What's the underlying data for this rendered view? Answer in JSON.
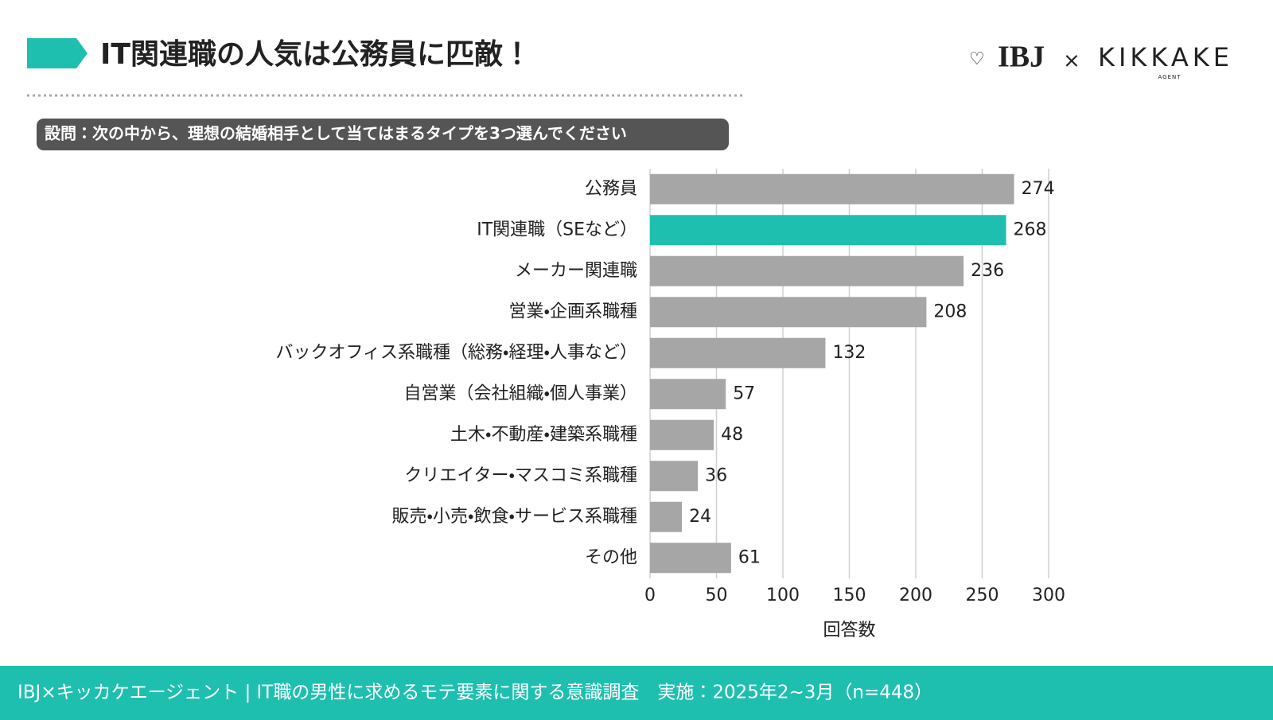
{
  "header": {
    "title": "IT関連職の人気は公務員に匹敵！",
    "logo_left": "IBJ",
    "logo_times": "×",
    "logo_right": "KIKKAKE",
    "logo_sub": "AGENT"
  },
  "question": "設問：次の中から、理想の結婚相手として当てはまるタイプを3つ選んでください",
  "footer": "IBJ×キッカケエージェント | IT職の男性に求めるモテ要素に関する意識調査　実施：2025年2~3月（n=448）",
  "chart_data": {
    "type": "barh",
    "categories": [
      "公務員",
      "IT関連職（SEなど）",
      "メーカー関連職",
      "営業・企画系職種",
      "バックオフィス系職種（総務・経理・人事など）",
      "自営業（会社組織・個人事業）",
      "土木・不動産・建築系職種",
      "クリエイター・マスコミ系職種",
      "販売・小売・飲食・サービス系職種",
      "その他"
    ],
    "values": [
      274,
      268,
      236,
      208,
      132,
      57,
      48,
      36,
      24,
      61
    ],
    "colors": [
      "#a6a6a6",
      "#1fbfb0",
      "#a6a6a6",
      "#a6a6a6",
      "#a6a6a6",
      "#a6a6a6",
      "#a6a6a6",
      "#a6a6a6",
      "#a6a6a6",
      "#a6a6a6"
    ],
    "xlim": [
      0,
      300
    ],
    "xticks": [
      0,
      50,
      100,
      150,
      200,
      250,
      300
    ],
    "x_label": "回答数",
    "grid": true
  }
}
